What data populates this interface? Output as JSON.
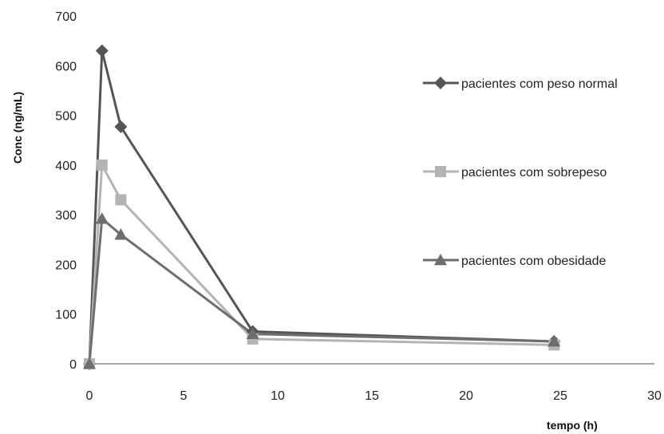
{
  "chart_data": {
    "type": "line",
    "title": "",
    "xlabel": "tempo (h)",
    "ylabel": "Conc (ng/mL)",
    "xlim": [
      0,
      30
    ],
    "ylim": [
      0,
      700
    ],
    "x_ticks": [
      0,
      5,
      10,
      15,
      20,
      25,
      30
    ],
    "y_ticks": [
      0,
      100,
      200,
      300,
      400,
      500,
      600,
      700
    ],
    "grid": false,
    "legend_position": "right",
    "series": [
      {
        "name": "pacientes com peso normal",
        "color": "#555555",
        "marker": "diamond",
        "x": [
          0,
          0.67,
          1.67,
          8.67,
          24.67
        ],
        "y": [
          0,
          630,
          477,
          65,
          45
        ]
      },
      {
        "name": "pacientes com sobrepeso",
        "color": "#b4b4b4",
        "marker": "square",
        "x": [
          0,
          0.67,
          1.67,
          8.67,
          24.67
        ],
        "y": [
          0,
          400,
          330,
          50,
          38
        ]
      },
      {
        "name": "pacientes com obesidade",
        "color": "#6e6e6e",
        "marker": "triangle",
        "x": [
          0,
          0.67,
          1.67,
          8.67,
          24.67
        ],
        "y": [
          0,
          292,
          260,
          60,
          45
        ]
      }
    ]
  }
}
